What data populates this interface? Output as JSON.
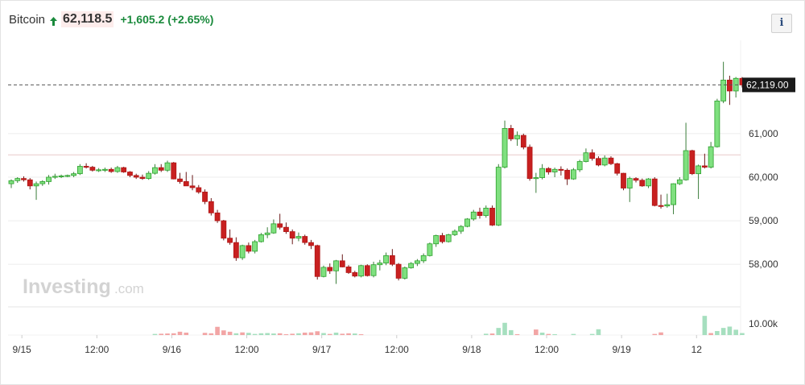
{
  "header": {
    "symbol": "Bitcoin",
    "price": "62,118.5",
    "change": "+1,605.2",
    "change_pct": "(+2.65%)",
    "info_label": "i"
  },
  "watermark": {
    "brand": "Investing",
    "suffix": ".com"
  },
  "colors": {
    "up": "#2ca02c",
    "up_fill": "#7fe07f",
    "down": "#b01616",
    "down_fill": "#c82020",
    "vol_up": "#a6dfbf",
    "vol_down": "#f2a5a5",
    "grid": "#ececec",
    "ref_line": "#e8c9c9"
  },
  "chart_data": {
    "type": "candlestick",
    "x_tick_labels": [
      "9/15",
      "12:00",
      "9/16",
      "12:00",
      "9/17",
      "12:00",
      "9/18",
      "12:00",
      "9/19",
      "12"
    ],
    "y_ticks": [
      58000,
      59000,
      60000,
      61000
    ],
    "y_tick_labels": [
      "58,000",
      "59,000",
      "60,000",
      "61,000"
    ],
    "ylim": [
      57300,
      62700
    ],
    "last_price": 62119,
    "last_price_label": "62,119.00",
    "reference_price": 60514,
    "volume_tick_label": "10.00k",
    "volume_ylim": [
      0,
      13000
    ],
    "bar_hours": 1,
    "candles": [
      [
        59850,
        59950,
        59750,
        59920
      ],
      [
        59920,
        60000,
        59870,
        59970
      ],
      [
        59970,
        60020,
        59900,
        59940
      ],
      [
        59940,
        59980,
        59720,
        59800
      ],
      [
        59800,
        59900,
        59480,
        59850
      ],
      [
        59850,
        59930,
        59800,
        59900
      ],
      [
        59900,
        60050,
        59830,
        60000
      ],
      [
        60000,
        60080,
        59960,
        60020
      ],
      [
        60020,
        60060,
        59980,
        60030
      ],
      [
        60030,
        60060,
        60000,
        60040
      ],
      [
        60040,
        60120,
        60000,
        60080
      ],
      [
        60080,
        60300,
        60050,
        60250
      ],
      [
        60250,
        60320,
        60200,
        60230
      ],
      [
        60230,
        60260,
        60130,
        60160
      ],
      [
        60160,
        60210,
        60120,
        60170
      ],
      [
        60170,
        60220,
        60120,
        60180
      ],
      [
        60180,
        60220,
        60100,
        60130
      ],
      [
        60130,
        60260,
        60100,
        60220
      ],
      [
        60220,
        60240,
        60100,
        60120
      ],
      [
        60120,
        60140,
        60000,
        60040
      ],
      [
        60040,
        60080,
        59960,
        60000
      ],
      [
        60000,
        60060,
        59940,
        59970
      ],
      [
        59970,
        60140,
        59940,
        60090
      ],
      [
        60090,
        60300,
        60060,
        60220
      ],
      [
        60220,
        60300,
        60120,
        60160
      ],
      [
        60160,
        60380,
        60120,
        60330
      ],
      [
        60330,
        60350,
        59950,
        59960
      ],
      [
        59960,
        60100,
        59850,
        59900
      ],
      [
        59900,
        60120,
        59800,
        59800
      ],
      [
        59800,
        60050,
        59700,
        59760
      ],
      [
        59760,
        59820,
        59620,
        59660
      ],
      [
        59660,
        59720,
        59380,
        59440
      ],
      [
        59440,
        59520,
        59120,
        59180
      ],
      [
        59180,
        59250,
        58950,
        59000
      ],
      [
        59000,
        59020,
        58550,
        58600
      ],
      [
        58600,
        58800,
        58450,
        58500
      ],
      [
        58500,
        58620,
        58080,
        58150
      ],
      [
        58150,
        58450,
        58100,
        58430
      ],
      [
        58430,
        58500,
        58250,
        58300
      ],
      [
        58300,
        58560,
        58250,
        58520
      ],
      [
        58520,
        58720,
        58500,
        58680
      ],
      [
        58680,
        58850,
        58600,
        58720
      ],
      [
        58720,
        59030,
        58700,
        58930
      ],
      [
        58930,
        59160,
        58800,
        58850
      ],
      [
        58850,
        58960,
        58700,
        58750
      ],
      [
        58750,
        58800,
        58460,
        58600
      ],
      [
        58600,
        58730,
        58530,
        58640
      ],
      [
        58640,
        58680,
        58450,
        58500
      ],
      [
        58500,
        58560,
        58350,
        58430
      ],
      [
        58430,
        58450,
        57650,
        57720
      ],
      [
        57720,
        57970,
        57700,
        57930
      ],
      [
        57930,
        58020,
        57780,
        57850
      ],
      [
        57850,
        58100,
        57550,
        58080
      ],
      [
        58080,
        58230,
        57930,
        57940
      ],
      [
        57940,
        57980,
        57780,
        57810
      ],
      [
        57810,
        57850,
        57700,
        57730
      ],
      [
        57730,
        57990,
        57700,
        57970
      ],
      [
        57970,
        58000,
        57720,
        57740
      ],
      [
        57740,
        58060,
        57700,
        57990
      ],
      [
        57990,
        58100,
        57860,
        58030
      ],
      [
        58030,
        58270,
        57980,
        58200
      ],
      [
        58200,
        58350,
        57960,
        58000
      ],
      [
        58000,
        58030,
        57630,
        57680
      ],
      [
        57680,
        57950,
        57650,
        57920
      ],
      [
        57920,
        58050,
        57900,
        58020
      ],
      [
        58020,
        58120,
        57960,
        58080
      ],
      [
        58080,
        58250,
        58030,
        58200
      ],
      [
        58200,
        58500,
        58180,
        58470
      ],
      [
        58470,
        58680,
        58400,
        58660
      ],
      [
        58660,
        58720,
        58480,
        58520
      ],
      [
        58520,
        58700,
        58500,
        58680
      ],
      [
        58680,
        58800,
        58650,
        58760
      ],
      [
        58760,
        58900,
        58700,
        58870
      ],
      [
        58870,
        59060,
        58850,
        59040
      ],
      [
        59040,
        59250,
        59000,
        59200
      ],
      [
        59200,
        59300,
        59050,
        59120
      ],
      [
        59120,
        59350,
        59070,
        59290
      ],
      [
        59290,
        59350,
        58880,
        58900
      ],
      [
        58900,
        60300,
        58880,
        60230
      ],
      [
        60230,
        61300,
        60200,
        61120
      ],
      [
        61120,
        61200,
        60830,
        60880
      ],
      [
        60880,
        61050,
        60720,
        60960
      ],
      [
        60960,
        61000,
        60640,
        60690
      ],
      [
        60690,
        60750,
        59920,
        59970
      ],
      [
        59970,
        60100,
        59640,
        59990
      ],
      [
        59990,
        60300,
        59950,
        60200
      ],
      [
        60200,
        60230,
        60060,
        60120
      ],
      [
        60120,
        60220,
        60000,
        60180
      ],
      [
        60180,
        60250,
        60040,
        60160
      ],
      [
        60160,
        60200,
        59820,
        59960
      ],
      [
        59960,
        60210,
        59940,
        60170
      ],
      [
        60170,
        60400,
        60120,
        60360
      ],
      [
        60360,
        60660,
        60340,
        60560
      ],
      [
        60560,
        60640,
        60380,
        60430
      ],
      [
        60430,
        60480,
        60250,
        60280
      ],
      [
        60280,
        60500,
        60250,
        60440
      ],
      [
        60440,
        60480,
        60280,
        60310
      ],
      [
        60310,
        60330,
        60040,
        60090
      ],
      [
        60090,
        60100,
        59700,
        59750
      ],
      [
        59750,
        60010,
        59430,
        59970
      ],
      [
        59970,
        60000,
        59880,
        59930
      ],
      [
        59930,
        59970,
        59780,
        59800
      ],
      [
        59800,
        59980,
        59750,
        59960
      ],
      [
        59960,
        60000,
        59330,
        59350
      ],
      [
        59350,
        59600,
        59280,
        59340
      ],
      [
        59340,
        59620,
        59300,
        59370
      ],
      [
        59370,
        59860,
        59150,
        59850
      ],
      [
        59850,
        60000,
        59820,
        59940
      ],
      [
        59940,
        61250,
        59920,
        60610
      ],
      [
        60610,
        60630,
        60050,
        60080
      ],
      [
        60080,
        60290,
        59500,
        60260
      ],
      [
        60260,
        60540,
        60200,
        60230
      ],
      [
        60230,
        60810,
        60200,
        60700
      ],
      [
        60700,
        61800,
        60680,
        61750
      ],
      [
        61750,
        62650,
        61700,
        62230
      ],
      [
        62230,
        62330,
        61660,
        61980
      ],
      [
        61980,
        62300,
        61830,
        62270
      ],
      [
        62270,
        62300,
        62060,
        62119
      ]
    ],
    "volumes": [
      0,
      0,
      0,
      0,
      0,
      0,
      0,
      0,
      0,
      0,
      0,
      0,
      0,
      0,
      0,
      0,
      0,
      0,
      0,
      0,
      0,
      0,
      0,
      500,
      600,
      700,
      800,
      1500,
      1100,
      0,
      0,
      1000,
      800,
      3700,
      2100,
      1500,
      800,
      1200,
      1000,
      500,
      800,
      900,
      700,
      800,
      400,
      600,
      800,
      1100,
      1200,
      1700,
      900,
      500,
      1100,
      600,
      800,
      700,
      400,
      0,
      0,
      0,
      0,
      0,
      0,
      0,
      0,
      0,
      0,
      0,
      0,
      0,
      0,
      0,
      0,
      0,
      0,
      0,
      600,
      700,
      3200,
      5500,
      2200,
      400,
      0,
      0,
      2500,
      1100,
      500,
      400,
      0,
      0,
      500,
      0,
      0,
      500,
      2600,
      0,
      0,
      0,
      0,
      0,
      0,
      0,
      0,
      500,
      1200,
      0,
      0,
      0,
      0,
      0,
      0,
      8600,
      900,
      1800,
      3200,
      3800,
      2400,
      900
    ],
    "volume_up": [
      1,
      1,
      1,
      1,
      1,
      1,
      1,
      1,
      1,
      1,
      1,
      1,
      1,
      1,
      1,
      1,
      1,
      1,
      1,
      1,
      1,
      1,
      1,
      1,
      0,
      0,
      0,
      0,
      0,
      0,
      0,
      0,
      0,
      0,
      0,
      0,
      1,
      0,
      1,
      1,
      1,
      1,
      1,
      0,
      0,
      0,
      1,
      0,
      0,
      0,
      1,
      0,
      1,
      0,
      0,
      1,
      0,
      1,
      1,
      1,
      1,
      1,
      1,
      1,
      1,
      1,
      1,
      1,
      1,
      1,
      1,
      1,
      1,
      1,
      1,
      1,
      1,
      0,
      1,
      1,
      1,
      0,
      0,
      0,
      0,
      1,
      0,
      1,
      1,
      1,
      1,
      1,
      1,
      1,
      1,
      0,
      0,
      0,
      0,
      0,
      0,
      0,
      0,
      0,
      0,
      0,
      0,
      0,
      0,
      0,
      0,
      1,
      0,
      1,
      1,
      1,
      1,
      1
    ]
  }
}
